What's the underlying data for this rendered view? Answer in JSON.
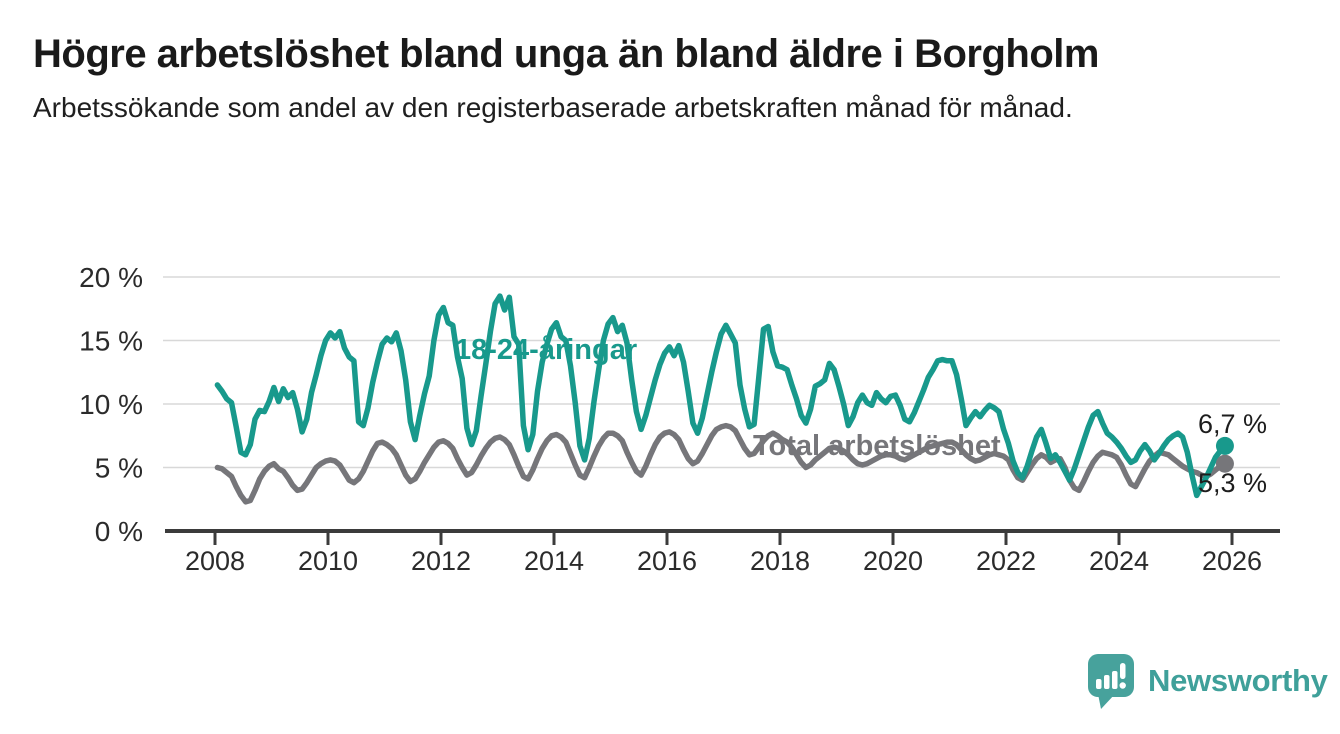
{
  "header": {
    "title": "Högre arbetslöshet bland unga än bland äldre i Borgholm",
    "subtitle": "Arbetssökande som andel av den registerbaserade arbetskraften månad för månad."
  },
  "footer": {
    "brand": "Newsworthy",
    "logo_icon": "speech-bubble-bar-chart"
  },
  "colors": {
    "accent_teal": "#18998c",
    "series_gray": "#76767a",
    "logo_teal": "#47a29c",
    "axis": "#3b3b3b",
    "grid": "#d8d8d8",
    "label_text": "#2b2b2b"
  },
  "chart_data": {
    "type": "line",
    "unit": "%",
    "frequency": "monthly",
    "start": "2008-01",
    "end": "2025-11",
    "grid": true,
    "x_axis": {
      "tick_years": [
        2008,
        2010,
        2012,
        2014,
        2016,
        2018,
        2020,
        2022,
        2024,
        2026
      ]
    },
    "y_axis": {
      "ticks": [
        0,
        5,
        10,
        15,
        20
      ],
      "tick_suffix": " %",
      "range": [
        0,
        20
      ]
    },
    "series": [
      {
        "name": "18-24-åringar",
        "color": "#18998c",
        "end_label": "6,7 %",
        "end_value": 6.7,
        "values": [
          11.5,
          11.0,
          10.4,
          10.1,
          8.2,
          6.2,
          6.0,
          6.8,
          8.8,
          9.5,
          9.4,
          10.2,
          11.3,
          10.2,
          11.2,
          10.5,
          10.9,
          9.6,
          7.8,
          8.8,
          10.9,
          12.3,
          13.8,
          15.0,
          15.6,
          15.2,
          15.7,
          14.4,
          13.7,
          13.4,
          8.6,
          8.3,
          9.7,
          11.7,
          13.3,
          14.7,
          15.2,
          14.9,
          15.6,
          14.2,
          11.9,
          8.6,
          7.2,
          9.1,
          10.8,
          12.2,
          15.0,
          17.0,
          17.6,
          16.4,
          16.2,
          13.7,
          12.0,
          8.1,
          6.8,
          7.9,
          10.6,
          13.1,
          15.7,
          17.9,
          18.5,
          17.4,
          18.4,
          15.3,
          14.7,
          8.3,
          6.4,
          7.6,
          11.0,
          13.3,
          14.7,
          15.9,
          16.4,
          15.3,
          15.0,
          13.0,
          10.1,
          6.7,
          5.6,
          7.3,
          10.2,
          12.7,
          15.0,
          16.3,
          16.8,
          15.7,
          16.2,
          14.8,
          11.9,
          9.4,
          8.0,
          9.1,
          10.5,
          11.9,
          13.1,
          14.0,
          14.5,
          13.8,
          14.6,
          13.3,
          11.0,
          8.5,
          7.7,
          8.9,
          10.7,
          12.5,
          14.1,
          15.5,
          16.2,
          15.5,
          14.8,
          11.5,
          9.6,
          8.2,
          8.4,
          12.1,
          15.9,
          16.1,
          14.1,
          13.0,
          12.9,
          12.7,
          11.5,
          10.4,
          9.1,
          8.5,
          9.6,
          11.4,
          11.6,
          11.9,
          13.2,
          12.7,
          11.4,
          10.0,
          8.3,
          9.0,
          10.1,
          10.7,
          10.1,
          9.9,
          10.9,
          10.4,
          10.1,
          10.6,
          10.7,
          9.9,
          8.8,
          8.6,
          9.3,
          10.2,
          11.1,
          12.1,
          12.7,
          13.4,
          13.5,
          13.4,
          13.4,
          12.3,
          10.4,
          8.3,
          8.9,
          9.4,
          9.0,
          9.5,
          9.9,
          9.7,
          9.4,
          8.0,
          6.9,
          5.5,
          4.6,
          4.2,
          5.1,
          6.3,
          7.4,
          8.0,
          6.9,
          5.7,
          6.0,
          5.4,
          4.7,
          4.0,
          4.9,
          6.0,
          7.1,
          8.2,
          9.1,
          9.4,
          8.5,
          7.7,
          7.4,
          7.0,
          6.5,
          5.9,
          5.4,
          5.6,
          6.3,
          6.8,
          6.3,
          5.6,
          6.1,
          6.7,
          7.2,
          7.5,
          7.7,
          7.4,
          6.2,
          4.4,
          2.8,
          3.5,
          4.2,
          5.0,
          5.8,
          6.3,
          6.7
        ]
      },
      {
        "name": "Total arbetslöshet",
        "color": "#76767a",
        "end_label": "5,3 %",
        "end_value": 5.3,
        "values": [
          5.0,
          4.9,
          4.6,
          4.3,
          3.5,
          2.8,
          2.3,
          2.4,
          3.2,
          4.1,
          4.7,
          5.1,
          5.3,
          4.9,
          4.7,
          4.2,
          3.6,
          3.2,
          3.3,
          3.8,
          4.4,
          5.0,
          5.3,
          5.5,
          5.6,
          5.5,
          5.2,
          4.6,
          4.0,
          3.8,
          4.1,
          4.7,
          5.5,
          6.3,
          6.9,
          7.0,
          6.8,
          6.5,
          6.0,
          5.2,
          4.4,
          3.9,
          4.1,
          4.7,
          5.4,
          6.0,
          6.6,
          7.0,
          7.1,
          6.9,
          6.5,
          5.7,
          5.0,
          4.4,
          4.6,
          5.2,
          5.9,
          6.5,
          7.0,
          7.3,
          7.4,
          7.2,
          6.8,
          6.0,
          5.1,
          4.3,
          4.1,
          4.8,
          5.7,
          6.5,
          7.1,
          7.5,
          7.6,
          7.4,
          7.0,
          6.1,
          5.2,
          4.4,
          4.2,
          5.0,
          5.9,
          6.7,
          7.3,
          7.7,
          7.7,
          7.5,
          7.1,
          6.2,
          5.4,
          4.7,
          4.4,
          5.1,
          6.0,
          6.8,
          7.4,
          7.7,
          7.8,
          7.6,
          7.2,
          6.4,
          5.7,
          5.3,
          5.5,
          6.1,
          6.8,
          7.5,
          8.0,
          8.2,
          8.3,
          8.2,
          7.9,
          7.2,
          6.5,
          6.0,
          6.1,
          6.6,
          7.1,
          7.5,
          7.7,
          7.5,
          7.2,
          7.0,
          6.6,
          6.0,
          5.4,
          5.0,
          5.2,
          5.6,
          5.9,
          6.2,
          6.5,
          6.6,
          6.5,
          6.3,
          6.0,
          5.6,
          5.3,
          5.2,
          5.3,
          5.5,
          5.7,
          5.9,
          6.0,
          6.0,
          5.9,
          5.7,
          5.6,
          5.8,
          6.0,
          6.2,
          6.4,
          6.6,
          6.7,
          6.8,
          6.9,
          7.0,
          7.0,
          6.8,
          6.4,
          6.0,
          5.7,
          5.5,
          5.6,
          5.8,
          6.0,
          6.1,
          6.0,
          5.9,
          5.6,
          4.8,
          4.2,
          4.0,
          4.6,
          5.2,
          5.7,
          6.0,
          5.8,
          5.4,
          5.6,
          5.7,
          5.0,
          4.0,
          3.4,
          3.2,
          3.9,
          4.7,
          5.4,
          5.9,
          6.2,
          6.1,
          6.0,
          5.8,
          5.2,
          4.4,
          3.7,
          3.5,
          4.2,
          4.9,
          5.5,
          5.9,
          6.2,
          6.1,
          6.0,
          5.7,
          5.4,
          5.1,
          4.9,
          4.7,
          4.6,
          4.4,
          4.3,
          4.5,
          4.8,
          5.1,
          5.3
        ]
      }
    ]
  }
}
